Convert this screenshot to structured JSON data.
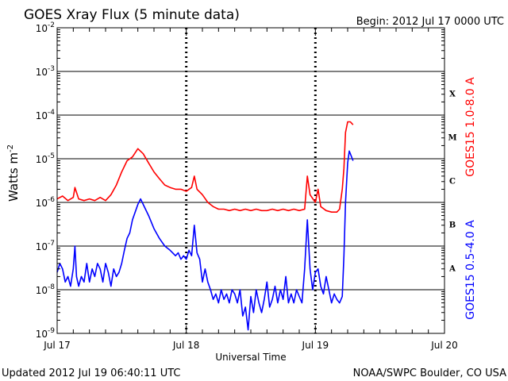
{
  "chart_data": {
    "type": "line",
    "title": "GOES Xray Flux (5 minute data)",
    "begin_label": "Begin:  2012 Jul 17 0000 UTC",
    "ylabel": "Watts m",
    "ylabel_sup": "-2",
    "xlabel": "Universal Time",
    "y_scale": "log",
    "ylim": [
      "1e-9",
      "1e-2"
    ],
    "y_ticks": [
      {
        "mant": "10",
        "exp": "-9"
      },
      {
        "mant": "10",
        "exp": "-8"
      },
      {
        "mant": "10",
        "exp": "-7"
      },
      {
        "mant": "10",
        "exp": "-6"
      },
      {
        "mant": "10",
        "exp": "-5"
      },
      {
        "mant": "10",
        "exp": "-4"
      },
      {
        "mant": "10",
        "exp": "-3"
      },
      {
        "mant": "10",
        "exp": "-2"
      }
    ],
    "x_unit": "hours since Jul 17 0000 UTC",
    "xlim": [
      0,
      72
    ],
    "x_ticks": [
      {
        "label": "Jul 17",
        "value": 0
      },
      {
        "label": "Jul 18",
        "value": 24
      },
      {
        "label": "Jul 19",
        "value": 48
      },
      {
        "label": "Jul 20",
        "value": 72
      }
    ],
    "flare_classes": [
      {
        "label": "A",
        "exp": -8
      },
      {
        "label": "B",
        "exp": -7
      },
      {
        "label": "C",
        "exp": -6
      },
      {
        "label": "M",
        "exp": -5
      },
      {
        "label": "X",
        "exp": -4
      }
    ],
    "grid": true,
    "series": [
      {
        "name": "GOES15 1.0-8.0 A",
        "color": "#ff0000",
        "x": [
          0,
          1,
          2,
          3,
          3.3,
          4,
          5,
          6,
          7,
          8,
          9,
          10,
          11,
          12,
          13,
          14,
          15,
          16,
          17,
          18,
          19,
          20,
          21,
          22,
          23,
          24,
          25,
          25.5,
          26,
          27,
          28,
          29,
          30,
          31,
          32,
          33,
          34,
          35,
          36,
          37,
          38,
          39,
          40,
          41,
          42,
          43,
          44,
          45,
          46,
          46.5,
          47,
          48,
          48.5,
          49,
          50,
          51,
          52,
          52.5,
          53,
          53.3,
          53.6,
          54,
          54.5,
          55
        ],
        "y": [
          "1.2e-6",
          "1.4e-6",
          "1.1e-6",
          "1.3e-6",
          "2.2e-6",
          "1.2e-6",
          "1.1e-6",
          "1.2e-6",
          "1.1e-6",
          "1.3e-6",
          "1.1e-6",
          "1.5e-6",
          "2.5e-6",
          "5e-6",
          "9e-6",
          "1.1e-5",
          "1.7e-5",
          "1.3e-5",
          "8e-6",
          "5e-6",
          "3.5e-6",
          "2.5e-6",
          "2.2e-6",
          "2e-6",
          "2e-6",
          "1.8e-6",
          "2.2e-6",
          "4e-6",
          "2e-6",
          "1.5e-6",
          "1e-6",
          "8e-7",
          "7e-7",
          "7e-7",
          "6.5e-7",
          "7e-7",
          "6.5e-7",
          "7e-7",
          "6.5e-7",
          "7e-7",
          "6.5e-7",
          "6.5e-7",
          "7e-7",
          "6.5e-7",
          "7e-7",
          "6.5e-7",
          "7e-7",
          "6.5e-7",
          "7e-7",
          "4e-6",
          "1.5e-6",
          "1e-6",
          "2e-6",
          "8e-7",
          "6.5e-7",
          "6e-7",
          "6e-7",
          "7e-7",
          "2e-6",
          "6e-6",
          "4e-5",
          "7e-5",
          "7e-5",
          "6e-5"
        ]
      },
      {
        "name": "GOES15 0.5-4.0 A",
        "color": "#0000ff",
        "x": [
          0,
          0.5,
          1,
          1.5,
          2,
          2.5,
          3,
          3.3,
          3.6,
          4,
          4.5,
          5,
          5.5,
          6,
          6.5,
          7,
          7.5,
          8,
          8.5,
          9,
          9.5,
          10,
          10.5,
          11,
          11.5,
          12,
          12.5,
          13,
          13.5,
          14,
          14.5,
          15,
          15.5,
          16,
          17,
          18,
          19,
          20,
          21,
          22,
          22.5,
          23,
          23.5,
          24,
          24.5,
          25,
          25.5,
          26,
          26.5,
          27,
          27.5,
          28,
          28.5,
          29,
          29.5,
          30,
          30.5,
          31,
          31.5,
          32,
          32.5,
          33,
          33.5,
          34,
          34.5,
          35,
          35.5,
          36,
          36.5,
          37,
          37.5,
          38,
          38.5,
          39,
          39.5,
          40,
          40.5,
          41,
          41.5,
          42,
          42.5,
          43,
          43.5,
          44,
          44.5,
          45,
          45.5,
          46,
          46.5,
          47,
          47.5,
          48,
          48.5,
          49,
          49.5,
          50,
          50.5,
          51,
          51.5,
          52,
          52.5,
          53,
          53.3,
          53.6,
          54,
          54.3,
          54.6,
          55
        ],
        "y": [
          "2.5e-8",
          "4e-8",
          "3e-8",
          "1.5e-8",
          "2e-8",
          "1.2e-8",
          "3e-8",
          "1e-7",
          "2e-8",
          "1.2e-8",
          "2e-8",
          "1.5e-8",
          "4e-8",
          "1.5e-8",
          "3e-8",
          "2e-8",
          "4e-8",
          "3e-8",
          "1.5e-8",
          "4e-8",
          "2.5e-8",
          "1.2e-8",
          "3e-8",
          "2e-8",
          "2.5e-8",
          "4e-8",
          "8e-8",
          "1.5e-7",
          "2e-7",
          "4e-7",
          "6e-7",
          "9e-7",
          "1.2e-6",
          "9e-7",
          "5e-7",
          "2.5e-7",
          "1.5e-7",
          "1e-7",
          "8e-8",
          "6e-8",
          "7e-8",
          "5e-8",
          "6e-8",
          "5e-8",
          "8e-8",
          "6e-8",
          "3e-7",
          "7e-8",
          "5e-8",
          "1.5e-8",
          "3e-8",
          "1.5e-8",
          "1e-8",
          "6e-9",
          "8e-9",
          "5e-9",
          "1e-8",
          "6e-9",
          "8e-9",
          "5e-9",
          "1e-8",
          "8e-9",
          "5e-9",
          "1e-8",
          "2.5e-9",
          "4e-9",
          "1.2e-9",
          "7e-9",
          "3e-9",
          "1e-8",
          "5e-9",
          "3e-9",
          "6e-9",
          "1.5e-8",
          "4e-9",
          "6e-9",
          "1.2e-8",
          "5e-9",
          "1e-8",
          "6e-9",
          "2e-8",
          "5e-9",
          "8e-9",
          "5e-9",
          "1e-8",
          "7e-9",
          "5e-9",
          "3e-8",
          "4e-7",
          "3e-8",
          "1e-8",
          "2.5e-8",
          "3e-8",
          "1.2e-8",
          "8e-9",
          "2e-8",
          "1e-8",
          "5e-9",
          "8e-9",
          "6e-9",
          "5e-9",
          "7e-9",
          "6e-8",
          "1e-6",
          "8e-6",
          "1.5e-5",
          "1.2e-5",
          "9e-6"
        ]
      }
    ]
  },
  "footer": {
    "updated": "Updated 2012 Jul 19 06:40:11 UTC",
    "source": "NOAA/SWPC Boulder, CO USA"
  }
}
